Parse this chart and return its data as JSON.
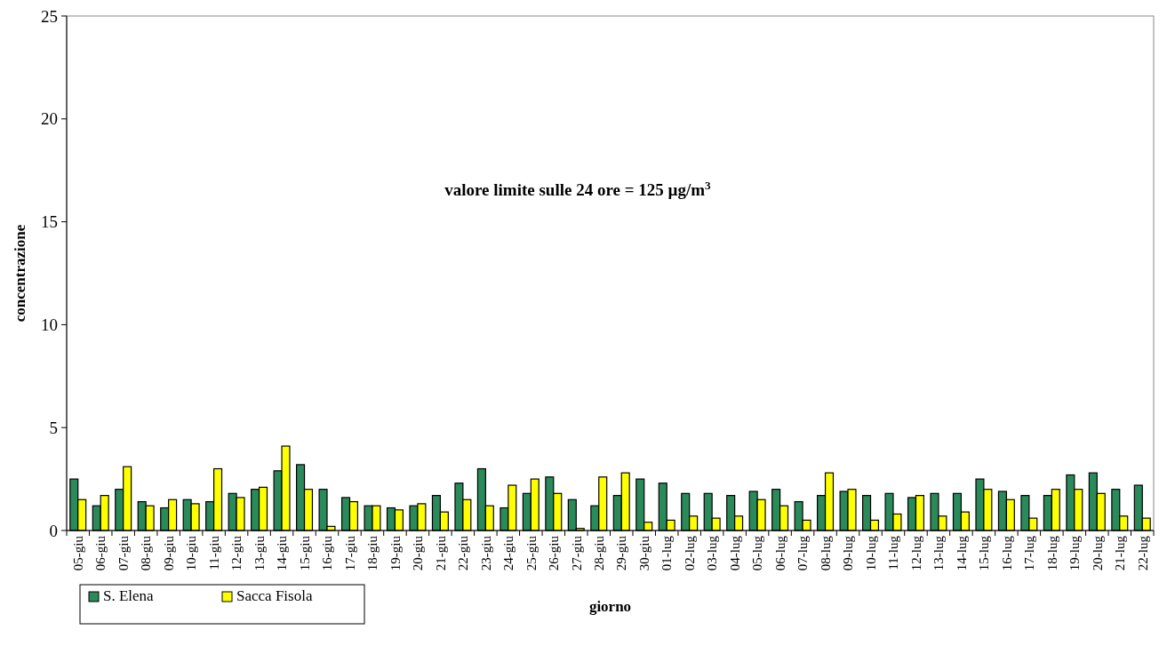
{
  "chart_data": {
    "type": "bar",
    "xlabel": "giorno",
    "ylabel": "concentrazione",
    "annotations": [
      "valore limite sulle 24 ore = 125 µg/m$^{3}$"
    ],
    "categories": [
      "05-giu",
      "06-giu",
      "07-giu",
      "08-giu",
      "09-giu",
      "10-giu",
      "11-giu",
      "12-giu",
      "13-giu",
      "14-giu",
      "15-giu",
      "16-giu",
      "17-giu",
      "18-giu",
      "19-giu",
      "20-giu",
      "21-giu",
      "22-giu",
      "23-giu",
      "24-giu",
      "25-giu",
      "26-giu",
      "27-giu",
      "28-giu",
      "29-giu",
      "30-giu",
      "01-lug",
      "02-lug",
      "03-lug",
      "04-lug",
      "05-lug",
      "06-lug",
      "07-lug",
      "08-lug",
      "09-lug",
      "10-lug",
      "11-lug",
      "12-lug",
      "13-lug",
      "14-lug",
      "15-lug",
      "16-lug",
      "17-lug",
      "18-lug",
      "19-lug",
      "20-lug",
      "21-lug",
      "22-lug"
    ],
    "series": [
      {
        "name": "S. Elena",
        "color": "#2a8a5a",
        "values": [
          2.5,
          1.2,
          2.0,
          1.4,
          1.1,
          1.5,
          1.4,
          1.8,
          2.0,
          2.9,
          3.2,
          2.0,
          1.6,
          1.2,
          1.1,
          1.2,
          1.7,
          2.3,
          3.0,
          1.1,
          1.8,
          2.6,
          1.5,
          1.2,
          1.7,
          2.5,
          2.3,
          1.8,
          1.8,
          1.7,
          1.9,
          2.0,
          1.4,
          1.7,
          1.9,
          1.7,
          1.8,
          1.6,
          1.8,
          1.8,
          2.5,
          1.9,
          1.7,
          1.7,
          2.7,
          2.8,
          2.0,
          2.2
        ]
      },
      {
        "name": "Sacca Fisola",
        "color": "#ffff00",
        "values": [
          1.5,
          1.7,
          3.1,
          1.2,
          1.5,
          1.3,
          3.0,
          1.6,
          2.1,
          4.1,
          2.0,
          0.2,
          1.4,
          1.2,
          1.0,
          1.3,
          0.9,
          1.5,
          1.2,
          2.2,
          2.5,
          1.8,
          0.1,
          2.6,
          2.8,
          0.4,
          0.5,
          0.7,
          0.6,
          0.7,
          1.5,
          1.2,
          0.5,
          2.8,
          2.0,
          0.5,
          0.8,
          1.7,
          0.7,
          0.9,
          2.0,
          1.5,
          0.6,
          2.0,
          2.0,
          1.8,
          0.7,
          0.6
        ]
      }
    ],
    "ylim": [
      0,
      25
    ],
    "yticks": [
      0,
      5,
      10,
      15,
      20,
      25
    ],
    "legend": "bottom left"
  }
}
